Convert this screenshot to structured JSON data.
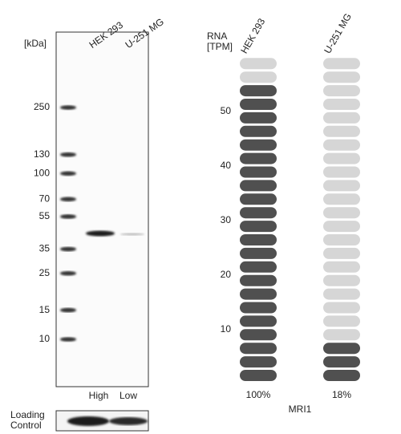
{
  "blot": {
    "unit_label": "[kDa]",
    "lanes": [
      "HEK 293",
      "U-251 MG"
    ],
    "markers": [
      250,
      130,
      100,
      70,
      55,
      35,
      25,
      15,
      10
    ],
    "lane_levels": [
      "High",
      "Low"
    ],
    "loading_control": "Loading\nControl"
  },
  "rna": {
    "axis_label": "RNA\n[TPM]",
    "ticks": [
      50,
      40,
      30,
      20,
      10
    ],
    "pills_per_column": 24,
    "columns": [
      {
        "name": "HEK 293",
        "filled": 22,
        "percent": "100%"
      },
      {
        "name": "U-251 MG",
        "filled": 3,
        "percent": "18%"
      }
    ],
    "gene": "MRI1"
  }
}
